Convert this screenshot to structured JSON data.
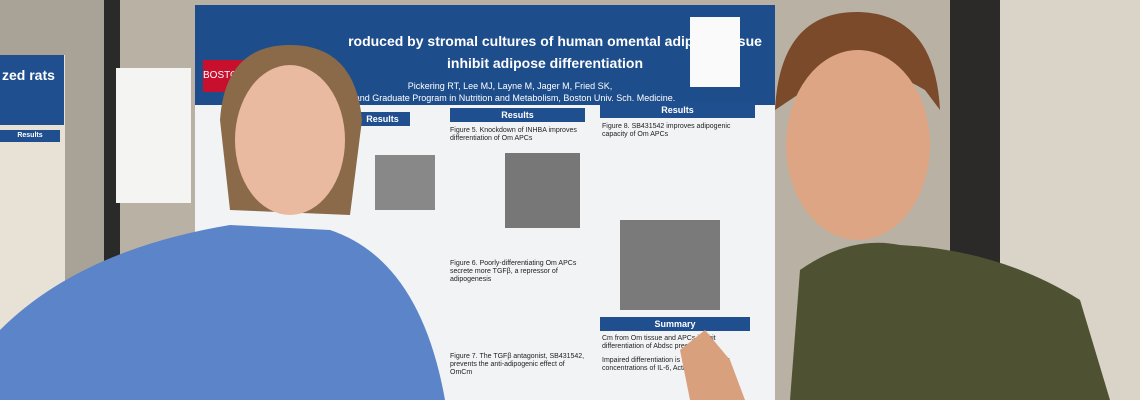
{
  "left_poster": {
    "title": "zed rats",
    "heading": "Results"
  },
  "poster": {
    "logo": "BOSTON",
    "title_line1": "roduced by stromal cultures of human omental adipose tissue",
    "title_line2": "inhibit adipose differentiation",
    "authors": "Pickering RT, Lee MJ, Layne M, Jager M, Fried SK,",
    "affiliation": "and Graduate Program in Nutrition and Metabolism, Boston Univ. Sch. Medicine.",
    "headings": [
      "Results",
      "Results",
      "Results",
      "Summary"
    ],
    "captions": [
      "Figure 5. Knockdown of INHBA improves differentiation of Om APCs",
      "Figure 6. Poorly-differentiating Om APCs secrete more TGFβ, a repressor of adipogenesis",
      "Figure 7. The TGFβ antagonist, SB431542, prevents the anti-adipogenic effect of OmCm",
      "Figure 8. SB431542 improves adipogenic capacity of Om APCs"
    ],
    "summary": [
      "Cm from Om tissue and APCs inhibit differentiation of Abdsc precursors",
      "Impaired differentiation is associated with concentrations of IL-6, Activin"
    ]
  }
}
